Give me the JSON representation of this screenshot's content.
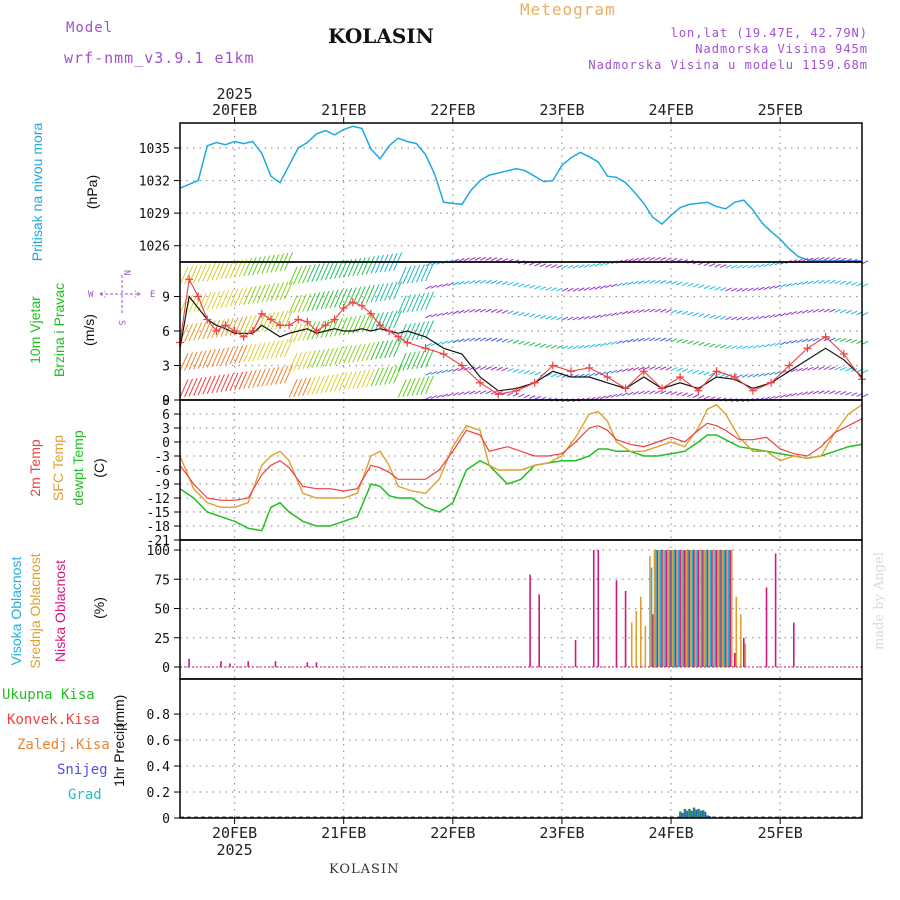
{
  "header": {
    "model_label": "Model",
    "model_name": "wrf-nmm_v3.9.1 e1km",
    "title": "KOLASIN",
    "meteogram_label": "Meteogram",
    "coords": "lon,lat (19.47E, 42.79N)",
    "elevation": "Nadmorska Visina 945m",
    "elevation_model": "Nadmorska Visina u modelu 1159.68m"
  },
  "footer": {
    "station": "KOLASIN",
    "credit": "made by Angel"
  },
  "time_axis": {
    "year": "2025",
    "days": [
      "20FEB",
      "21FEB",
      "22FEB",
      "23FEB",
      "24FEB",
      "25FEB"
    ],
    "day_positions_hours": [
      12,
      36,
      60,
      84,
      108,
      132
    ],
    "range_hours": [
      0,
      150
    ]
  },
  "colors": {
    "pressure": "#20a8e0",
    "temp2m": "#f04040",
    "sfc_temp": "#e0a030",
    "dewpoint": "#20c020",
    "cloud_high": "#20b0e0",
    "cloud_mid": "#e0a030",
    "cloud_low": "#d01880",
    "wind_speed": "#111111",
    "wind_gust": "#f04040",
    "label_purple": "#a050d0"
  },
  "chart_data": [
    {
      "type": "line",
      "ylabel": "Pritisak na nivou mora",
      "unit": "(hPa)",
      "yticks": [
        1026,
        1029,
        1032,
        1035
      ],
      "ylim": [
        1024.5,
        1037.3
      ],
      "series": [
        {
          "name": "Pritisak na nivou mora",
          "x": [
            0,
            4,
            6,
            8,
            10,
            12,
            14,
            16,
            18,
            20,
            22,
            24,
            26,
            28,
            30,
            32,
            34,
            36,
            38,
            40,
            42,
            44,
            46,
            48,
            50,
            52,
            54,
            56,
            58,
            60,
            62,
            64,
            66,
            68,
            70,
            72,
            74,
            76,
            78,
            80,
            82,
            84,
            86,
            88,
            90,
            92,
            94,
            96,
            98,
            100,
            102,
            104,
            106,
            108,
            110,
            112,
            114,
            116,
            118,
            120,
            122,
            124,
            126,
            128,
            130,
            132,
            134,
            136,
            138,
            140,
            142,
            144,
            146,
            150
          ],
          "y": [
            1031.3,
            1032.0,
            1035.2,
            1035.5,
            1035.3,
            1035.6,
            1035.4,
            1035.6,
            1034.5,
            1032.4,
            1031.8,
            1033.4,
            1035.0,
            1035.5,
            1036.3,
            1036.6,
            1036.2,
            1036.7,
            1037.0,
            1036.8,
            1034.9,
            1034.0,
            1035.2,
            1035.9,
            1035.6,
            1035.4,
            1034.4,
            1032.6,
            1030.0,
            1029.9,
            1029.8,
            1031.1,
            1032.0,
            1032.5,
            1032.7,
            1032.9,
            1033.1,
            1032.9,
            1032.4,
            1031.9,
            1032.0,
            1033.4,
            1034.1,
            1034.6,
            1034.2,
            1033.7,
            1032.4,
            1032.3,
            1031.8,
            1030.9,
            1029.9,
            1028.6,
            1028.0,
            1028.8,
            1029.5,
            1029.8,
            1029.9,
            1030.0,
            1029.6,
            1029.4,
            1030.0,
            1030.2,
            1029.3,
            1028.1,
            1027.3,
            1026.6,
            1025.7,
            1025.0,
            1024.7,
            1024.6,
            1024.6,
            1024.6,
            1024.6,
            1024.6
          ]
        }
      ]
    },
    {
      "type": "line",
      "ylabel": "10m Vjetar Brzina i Pravac",
      "unit": "(m/s)",
      "yticks": [
        0,
        3,
        6,
        9
      ],
      "ylim": [
        0,
        12
      ],
      "compass": {
        "n": "N",
        "s": "S",
        "e": "E",
        "w": "W"
      },
      "series": [
        {
          "name": "speed",
          "x": [
            0,
            2,
            4,
            6,
            8,
            10,
            12,
            14,
            16,
            18,
            20,
            22,
            24,
            26,
            28,
            30,
            32,
            34,
            36,
            38,
            40,
            42,
            44,
            46,
            48,
            50,
            54,
            58,
            62,
            66,
            70,
            74,
            78,
            82,
            86,
            90,
            94,
            98,
            102,
            106,
            110,
            114,
            118,
            122,
            126,
            130,
            134,
            138,
            142,
            146,
            150
          ],
          "y": [
            4.5,
            9.0,
            8.0,
            7.0,
            6.5,
            6.2,
            5.8,
            5.8,
            5.8,
            6.5,
            6.0,
            5.5,
            5.8,
            6.0,
            6.2,
            5.8,
            6.0,
            6.2,
            6.0,
            6.0,
            6.2,
            6.0,
            6.2,
            6.0,
            5.8,
            6.0,
            5.5,
            4.5,
            4.0,
            2.0,
            0.8,
            1.0,
            1.5,
            2.5,
            2.0,
            2.0,
            1.5,
            1.0,
            2.0,
            1.0,
            1.5,
            1.0,
            2.0,
            1.8,
            1.0,
            1.5,
            2.5,
            3.5,
            4.5,
            3.5,
            2.0
          ]
        },
        {
          "name": "gust",
          "x": [
            0,
            2,
            4,
            6,
            8,
            10,
            12,
            14,
            16,
            18,
            20,
            22,
            24,
            26,
            28,
            30,
            32,
            34,
            36,
            38,
            40,
            42,
            44,
            46,
            48,
            50,
            54,
            58,
            62,
            66,
            70,
            74,
            78,
            82,
            86,
            90,
            94,
            98,
            102,
            106,
            110,
            114,
            118,
            122,
            126,
            130,
            134,
            138,
            142,
            146,
            150
          ],
          "y": [
            5.0,
            10.5,
            9.0,
            7.0,
            6.0,
            6.5,
            6.0,
            5.5,
            6.0,
            7.5,
            7.0,
            6.5,
            6.5,
            7.0,
            6.8,
            6.0,
            6.5,
            7.0,
            8.0,
            8.5,
            8.2,
            7.5,
            6.5,
            6.0,
            5.5,
            5.0,
            4.5,
            4.0,
            3.0,
            1.5,
            0.5,
            0.8,
            1.5,
            3.0,
            2.5,
            2.8,
            2.0,
            1.0,
            2.5,
            1.0,
            2.0,
            0.8,
            2.5,
            2.0,
            0.8,
            1.5,
            3.0,
            4.5,
            5.5,
            4.0,
            1.8
          ]
        }
      ]
    },
    {
      "type": "line",
      "ylabels": [
        "2m Temp",
        "SFC Temp",
        "dewpt Temp"
      ],
      "unit": "(C)",
      "yticks": [
        -21,
        -18,
        -15,
        -12,
        -9,
        -6,
        -3,
        0,
        3,
        6,
        9
      ],
      "ylim": [
        -21,
        9
      ],
      "series": [
        {
          "name": "2m Temp",
          "x": [
            0,
            3,
            6,
            9,
            12,
            15,
            18,
            20,
            22,
            24,
            27,
            30,
            33,
            36,
            39,
            42,
            44,
            46,
            48,
            51,
            54,
            57,
            60,
            63,
            66,
            68,
            70,
            72,
            75,
            78,
            81,
            84,
            87,
            90,
            92,
            94,
            96,
            99,
            102,
            105,
            108,
            111,
            114,
            116,
            118,
            120,
            123,
            126,
            129,
            132,
            135,
            138,
            141,
            144,
            147,
            150
          ],
          "y": [
            -5,
            -9,
            -12,
            -12.5,
            -12.5,
            -12,
            -7,
            -5,
            -4,
            -5.5,
            -9.5,
            -10,
            -10,
            -10.5,
            -10,
            -5,
            -5.5,
            -6.5,
            -8,
            -8,
            -8,
            -6,
            -2,
            2.5,
            1.5,
            -2,
            -1.5,
            -1,
            -2,
            -3,
            -3,
            -2.5,
            0,
            3,
            3.5,
            2.5,
            0.5,
            -0.5,
            -1,
            0,
            1,
            0,
            2.5,
            4,
            3.5,
            2.5,
            0.5,
            0.5,
            1,
            -1.5,
            -2.5,
            -3,
            -1,
            2,
            3.5,
            5
          ]
        },
        {
          "name": "SFC Temp",
          "x": [
            0,
            3,
            6,
            9,
            12,
            15,
            18,
            20,
            22,
            24,
            27,
            30,
            33,
            36,
            39,
            42,
            44,
            46,
            48,
            51,
            54,
            57,
            60,
            63,
            66,
            68,
            70,
            72,
            75,
            78,
            81,
            84,
            87,
            90,
            92,
            94,
            96,
            99,
            102,
            105,
            108,
            111,
            114,
            116,
            118,
            120,
            123,
            126,
            129,
            132,
            135,
            138,
            141,
            144,
            147,
            150
          ],
          "y": [
            -3,
            -10,
            -13,
            -14,
            -14,
            -13,
            -5,
            -3,
            -2,
            -4,
            -11,
            -12,
            -12,
            -12,
            -11,
            -3,
            -2,
            -5,
            -9.5,
            -10.5,
            -11,
            -8,
            -1,
            3.5,
            2.5,
            -5,
            -6,
            -6,
            -6,
            -5,
            -4.5,
            -3,
            1,
            6,
            6.5,
            4.5,
            0,
            -2,
            -2,
            -1,
            0,
            -1,
            3,
            7,
            8,
            6,
            1,
            -2,
            -2,
            -4,
            -3,
            -3.5,
            -3,
            2,
            6,
            8
          ]
        },
        {
          "name": "dewpt Temp",
          "x": [
            0,
            3,
            6,
            9,
            12,
            15,
            18,
            20,
            22,
            24,
            27,
            30,
            33,
            36,
            39,
            42,
            44,
            46,
            48,
            51,
            54,
            57,
            60,
            63,
            66,
            68,
            70,
            72,
            75,
            78,
            81,
            84,
            87,
            90,
            92,
            94,
            96,
            99,
            102,
            105,
            108,
            111,
            114,
            116,
            118,
            120,
            123,
            126,
            129,
            132,
            135,
            138,
            141,
            144,
            147,
            150
          ],
          "y": [
            -10,
            -12,
            -15,
            -16,
            -17,
            -18.5,
            -19,
            -14,
            -13,
            -15,
            -17,
            -18,
            -18,
            -17,
            -16,
            -9,
            -9.5,
            -11.5,
            -12,
            -12,
            -14,
            -15,
            -13,
            -6,
            -4,
            -5,
            -7,
            -9,
            -8,
            -5,
            -4.5,
            -4,
            -4,
            -3,
            -1.5,
            -1.5,
            -2,
            -2,
            -3,
            -3,
            -2.5,
            -2,
            0,
            1.5,
            1.5,
            0.5,
            -1,
            -1.5,
            -2,
            -2.5,
            -3,
            -3.5,
            -3,
            -2,
            -1,
            -0.5
          ]
        }
      ]
    },
    {
      "type": "bar",
      "ylabels": [
        "Visoka Oblacnost",
        "Srednja Oblacnost",
        "Niska Oblacnost"
      ],
      "unit": "(%)",
      "yticks": [
        0,
        25,
        50,
        75,
        100
      ],
      "ylim": [
        0,
        100
      ],
      "series": [
        {
          "name": "Niska Oblacnost",
          "x": [
            2,
            9,
            11,
            15,
            21,
            28,
            30,
            77,
            79,
            87,
            91,
            92,
            96,
            98,
            104,
            105,
            106,
            107,
            108,
            109,
            110,
            111,
            112,
            113,
            114,
            115,
            116,
            117,
            118,
            119,
            120,
            121,
            122,
            124,
            129,
            131,
            135
          ],
          "y": [
            7,
            5,
            3,
            5,
            5,
            4,
            4,
            79,
            62,
            23,
            100,
            100,
            74,
            65,
            45,
            100,
            100,
            100,
            100,
            100,
            100,
            100,
            100,
            100,
            100,
            100,
            100,
            100,
            100,
            100,
            100,
            100,
            12,
            25,
            68,
            97,
            38
          ]
        },
        {
          "name": "Srednja Oblacnost",
          "x": [
            99,
            100,
            101,
            102,
            103,
            104,
            105,
            106,
            107,
            108,
            109,
            110,
            111,
            112,
            113,
            114,
            115,
            116,
            117,
            118,
            119,
            120,
            121,
            122,
            123,
            124
          ],
          "y": [
            38,
            48,
            60,
            35,
            95,
            100,
            100,
            100,
            100,
            100,
            100,
            100,
            100,
            100,
            100,
            100,
            100,
            100,
            100,
            100,
            100,
            100,
            100,
            60,
            45,
            20
          ]
        },
        {
          "name": "Visoka Oblacnost",
          "x": [
            103,
            104,
            105,
            106,
            107,
            108,
            109,
            110,
            111,
            112,
            113,
            114,
            115,
            116,
            117,
            118,
            119,
            120
          ],
          "y": [
            85,
            100,
            100,
            100,
            100,
            100,
            100,
            100,
            100,
            100,
            100,
            100,
            100,
            100,
            100,
            100,
            100,
            100
          ]
        }
      ]
    },
    {
      "type": "bar",
      "ylabel": "1hr Precip",
      "unit": "(mm)",
      "yticks": [
        0,
        0.2,
        0.4,
        0.6,
        0.8
      ],
      "ylim": [
        0,
        1
      ],
      "legend": [
        "Ukupna Kisa",
        "Konvek.Kisa",
        "Zaledj.Kisa",
        "Snijeg",
        "Grad"
      ],
      "series": [
        {
          "name": "Ukupna Kisa",
          "x": [
            110,
            111,
            112,
            113,
            114,
            115,
            116
          ],
          "y": [
            0.05,
            0.07,
            0.07,
            0.08,
            0.07,
            0.06,
            0.02
          ]
        }
      ]
    }
  ]
}
